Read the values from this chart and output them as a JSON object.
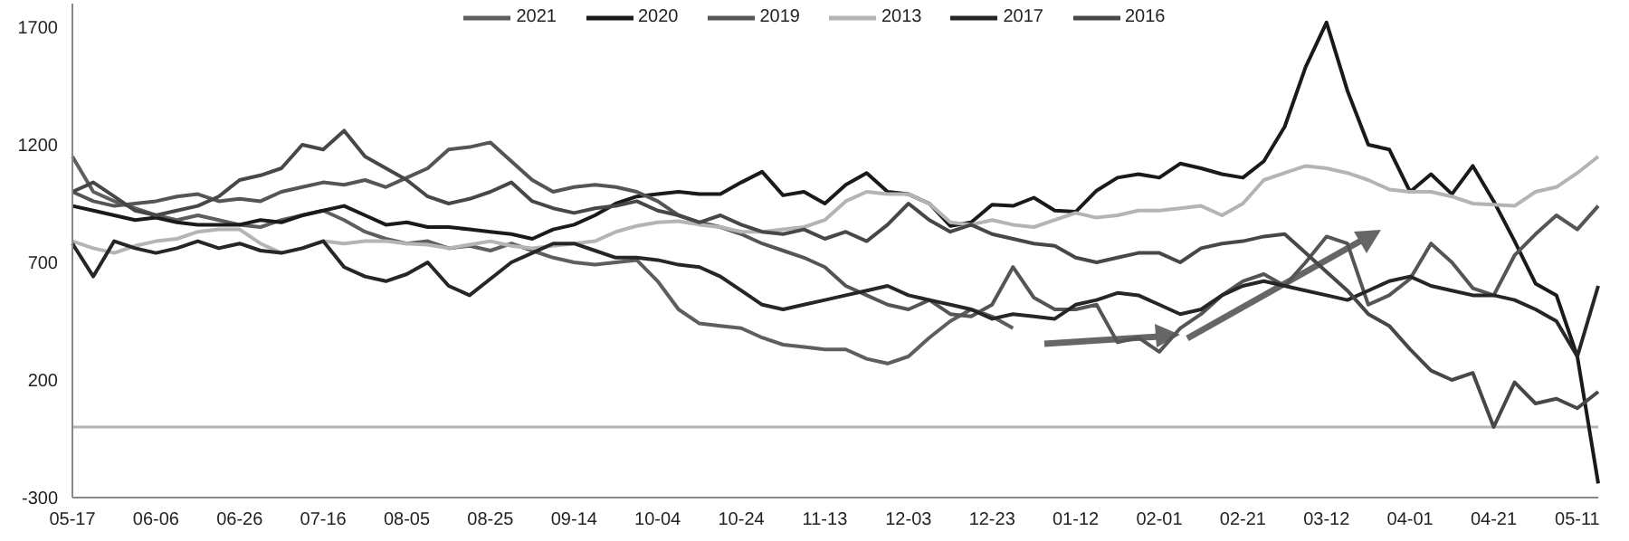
{
  "chart_data": {
    "type": "line",
    "categories": [
      "05-17",
      null,
      null,
      null,
      "06-06",
      null,
      null,
      null,
      "06-26",
      null,
      null,
      null,
      "07-16",
      null,
      null,
      null,
      "08-05",
      null,
      null,
      null,
      "08-25",
      null,
      null,
      null,
      "09-14",
      null,
      null,
      null,
      "10-04",
      null,
      null,
      null,
      "10-24",
      null,
      null,
      null,
      "11-13",
      null,
      null,
      null,
      "12-03",
      null,
      null,
      null,
      "12-23",
      null,
      null,
      null,
      "01-12",
      null,
      null,
      null,
      "02-01",
      null,
      null,
      null,
      "02-21",
      null,
      null,
      null,
      "03-12",
      null,
      null,
      null,
      "04-01",
      null,
      null,
      null,
      "04-21",
      null,
      null,
      null,
      "05-11",
      null
    ],
    "series": [
      {
        "name": "2021",
        "color": "#5e5e5e",
        "values": [
          1150,
          1000,
          960,
          930,
          900,
          880,
          900,
          880,
          860,
          850,
          880,
          900,
          920,
          880,
          830,
          800,
          780,
          790,
          760,
          770,
          750,
          780,
          750,
          720,
          700,
          690,
          700,
          710,
          620,
          500,
          440,
          430,
          420,
          380,
          350,
          340,
          330,
          330,
          290,
          270,
          300,
          380,
          450,
          500,
          470,
          420,
          null,
          null,
          null,
          null,
          null,
          null,
          null,
          null,
          null,
          null,
          null,
          null,
          null,
          null,
          null,
          null,
          null,
          null,
          null,
          null,
          null,
          null,
          null,
          null,
          null,
          null,
          null,
          null
        ]
      },
      {
        "name": "2020",
        "color": "#1a1a1a",
        "values": [
          940,
          920,
          900,
          880,
          890,
          870,
          860,
          860,
          860,
          880,
          870,
          900,
          920,
          940,
          900,
          860,
          870,
          850,
          850,
          840,
          830,
          820,
          800,
          840,
          860,
          900,
          950,
          980,
          990,
          1000,
          990,
          990,
          1040,
          1085,
          985,
          1000,
          950,
          1030,
          1080,
          1000,
          990,
          950,
          855,
          870,
          945,
          940,
          975,
          920,
          915,
          1005,
          1060,
          1075,
          1060,
          1120,
          1100,
          1075,
          1060,
          1130,
          1277,
          1530,
          1720,
          1430,
          1200,
          1180,
          1000,
          1075,
          990,
          1110,
          960,
          790,
          610,
          560,
          300,
          -240
        ]
      },
      {
        "name": "2019",
        "color": "#555555",
        "values": [
          1000,
          960,
          940,
          950,
          960,
          980,
          990,
          960,
          970,
          960,
          1000,
          1020,
          1040,
          1030,
          1050,
          1020,
          1060,
          1100,
          1180,
          1190,
          1210,
          1130,
          1050,
          1000,
          1020,
          1030,
          1020,
          1000,
          960,
          900,
          870,
          850,
          820,
          780,
          750,
          720,
          680,
          600,
          560,
          520,
          500,
          540,
          480,
          470,
          520,
          680,
          550,
          500,
          500,
          520,
          360,
          380,
          320,
          420,
          480,
          560,
          620,
          650,
          600,
          700,
          810,
          780,
          520,
          560,
          630,
          780,
          700,
          590,
          560,
          730,
          820,
          900,
          840,
          940
        ]
      },
      {
        "name": "2013",
        "color": "#b4b4b4",
        "values": [
          790,
          760,
          740,
          770,
          790,
          800,
          830,
          840,
          840,
          780,
          740,
          760,
          790,
          780,
          790,
          790,
          780,
          775,
          760,
          775,
          790,
          770,
          760,
          770,
          780,
          790,
          830,
          855,
          870,
          875,
          860,
          850,
          830,
          830,
          840,
          850,
          880,
          960,
          1000,
          990,
          990,
          950,
          870,
          860,
          880,
          860,
          850,
          880,
          910,
          890,
          900,
          920,
          920,
          930,
          940,
          900,
          950,
          1050,
          1080,
          1110,
          1100,
          1080,
          1050,
          1010,
          1000,
          1000,
          980,
          950,
          945,
          940,
          1000,
          1020,
          1080,
          1150
        ]
      },
      {
        "name": "2017",
        "color": "#262626",
        "values": [
          780,
          640,
          790,
          760,
          740,
          760,
          790,
          760,
          780,
          750,
          740,
          760,
          790,
          680,
          640,
          620,
          650,
          700,
          600,
          560,
          630,
          700,
          740,
          780,
          780,
          750,
          720,
          720,
          710,
          690,
          680,
          640,
          580,
          520,
          500,
          520,
          540,
          560,
          580,
          600,
          560,
          540,
          520,
          500,
          460,
          480,
          470,
          460,
          520,
          540,
          570,
          560,
          520,
          480,
          500,
          560,
          600,
          620,
          600,
          580,
          560,
          540,
          580,
          620,
          640,
          600,
          580,
          560,
          560,
          540,
          500,
          450,
          300,
          600
        ]
      },
      {
        "name": "2016",
        "color": "#474747",
        "values": [
          1000,
          1040,
          980,
          920,
          900,
          920,
          940,
          980,
          1050,
          1070,
          1100,
          1200,
          1180,
          1260,
          1150,
          1100,
          1050,
          980,
          950,
          970,
          1000,
          1040,
          960,
          930,
          910,
          930,
          940,
          960,
          920,
          900,
          870,
          900,
          860,
          830,
          820,
          840,
          800,
          830,
          790,
          860,
          950,
          880,
          830,
          860,
          820,
          800,
          780,
          770,
          720,
          700,
          720,
          740,
          740,
          700,
          760,
          780,
          790,
          810,
          820,
          740,
          660,
          580,
          480,
          430,
          330,
          240,
          200,
          230,
          0,
          190,
          100,
          120,
          80,
          150
        ]
      }
    ],
    "ylim": [
      -300,
      1800
    ],
    "yticks": [
      -300,
      200,
      700,
      1200,
      1700
    ],
    "ref_lines": [
      {
        "axis": "y",
        "value": 0,
        "color": "#b4b4b4"
      }
    ],
    "legend": "top",
    "grid": false,
    "marker": "none",
    "line_style": "solid"
  }
}
